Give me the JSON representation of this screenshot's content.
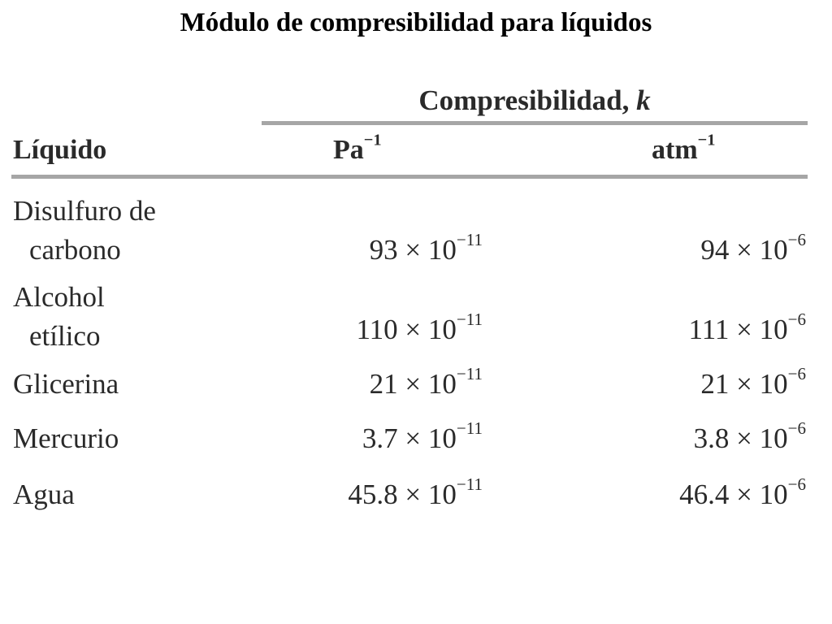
{
  "title": "Módulo de compresibilidad para líquidos",
  "table": {
    "group_header": "Compresibilidad, ",
    "group_header_symbol": "k",
    "columns": {
      "liquid": "Líquido",
      "pa_base": "Pa",
      "pa_exp": "−1",
      "atm_base": "atm",
      "atm_exp": "−1"
    },
    "rows": [
      {
        "name_line1": "Disulfuro de",
        "name_line2": "carbono",
        "pa_mantissa": "93 × 10",
        "pa_exp": "−11",
        "atm_mantissa": "94 × 10",
        "atm_exp": "−6"
      },
      {
        "name_line1": "Alcohol",
        "name_line2": "etílico",
        "pa_mantissa": "110 × 10",
        "pa_exp": "−11",
        "atm_mantissa": "111 × 10",
        "atm_exp": "−6"
      },
      {
        "name_line1": "Glicerina",
        "name_line2": "",
        "pa_mantissa": "21 × 10",
        "pa_exp": "−11",
        "atm_mantissa": "21 × 10",
        "atm_exp": "−6"
      },
      {
        "name_line1": "Mercurio",
        "name_line2": "",
        "pa_mantissa": "3.7 × 10",
        "pa_exp": "−11",
        "atm_mantissa": "3.8 × 10",
        "atm_exp": "−6"
      },
      {
        "name_line1": "Agua",
        "name_line2": "",
        "pa_mantissa": "45.8 × 10",
        "pa_exp": "−11",
        "atm_mantissa": "46.4 × 10",
        "atm_exp": "−6"
      }
    ]
  }
}
